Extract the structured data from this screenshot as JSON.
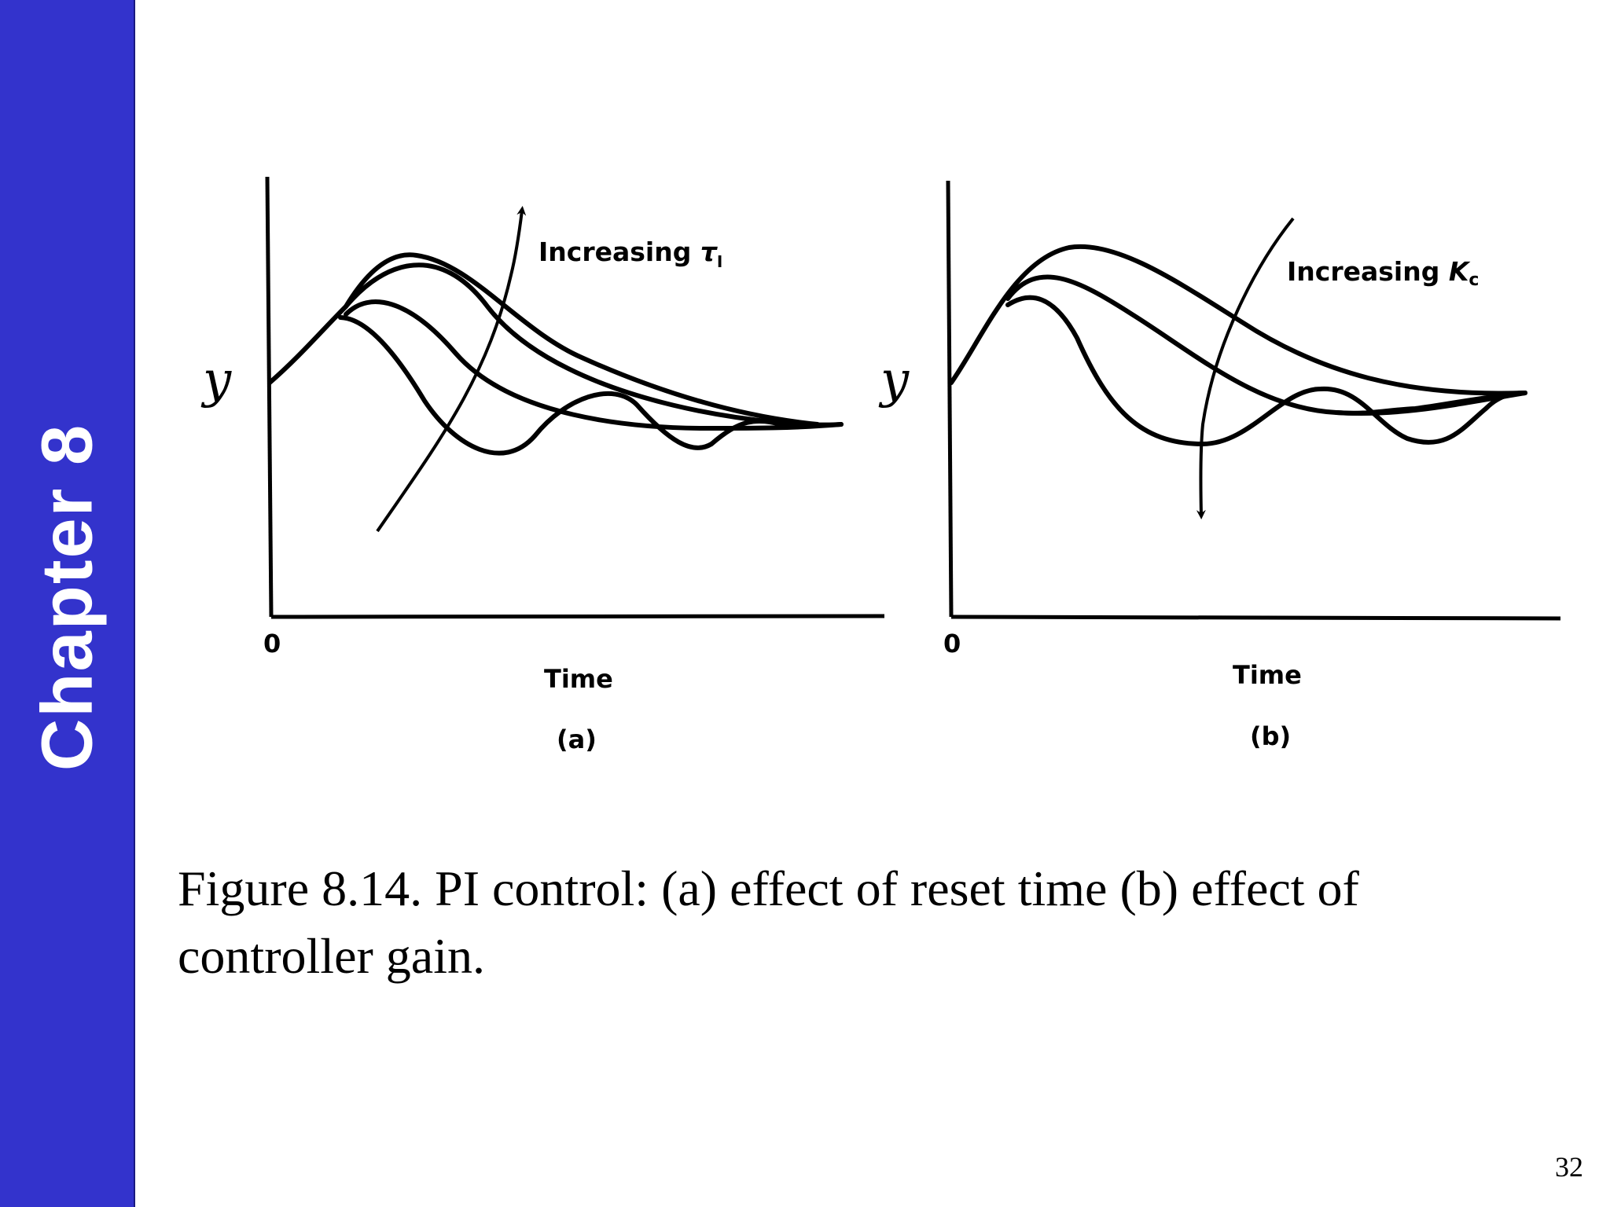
{
  "sidebar": {
    "chapter_label": "Chapter 8"
  },
  "caption": "Figure 8.14. PI control: (a) effect of reset time  (b) effect of controller gain.",
  "page_number": "32",
  "chart_data": [
    {
      "type": "line",
      "panel": "(a)",
      "xlabel": "Time",
      "ylabel": "y",
      "x_tick_labels": [
        "0"
      ],
      "annotation": {
        "text": "Increasing ",
        "symbol": "τ",
        "subscript": "I",
        "arrow_direction": "up"
      },
      "grid": false,
      "axis_values_shown": false
    },
    {
      "type": "line",
      "panel": "(b)",
      "xlabel": "Time",
      "ylabel": "y",
      "x_tick_labels": [
        "0"
      ],
      "annotation": {
        "text": "Increasing ",
        "symbol": "K",
        "subscript": "c",
        "arrow_direction": "down"
      },
      "grid": false,
      "axis_values_shown": false
    }
  ]
}
